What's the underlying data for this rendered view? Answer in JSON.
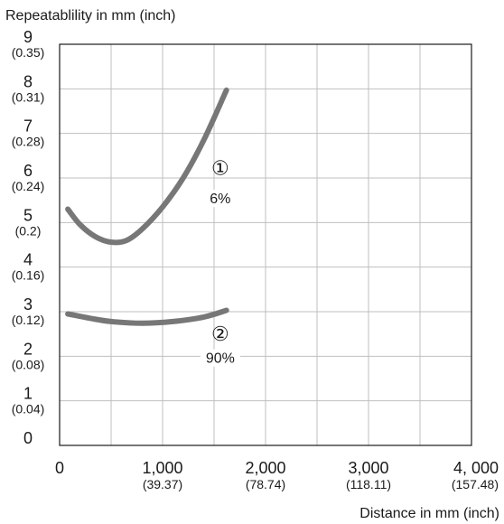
{
  "chart_data": {
    "type": "line",
    "ylabel": "Repeatablility in mm (inch)",
    "xlabel": "Distance in mm (inch)",
    "xlim": [
      0,
      4000
    ],
    "ylim": [
      0,
      9
    ],
    "grid": true,
    "x_ticks": [
      {
        "value": 0,
        "label": "0",
        "sub": ""
      },
      {
        "value": 1000,
        "label": "1,000",
        "sub": "(39.37)"
      },
      {
        "value": 2000,
        "label": "2,000",
        "sub": "(78.74)"
      },
      {
        "value": 3000,
        "label": "3,000",
        "sub": "(118.11)"
      },
      {
        "value": 4000,
        "label": "4, 000",
        "sub": "(157.48)"
      }
    ],
    "y_ticks": [
      {
        "value": 0,
        "label": "0",
        "sub": ""
      },
      {
        "value": 1,
        "label": "1",
        "sub": "(0.04)"
      },
      {
        "value": 2,
        "label": "2",
        "sub": "(0.08)"
      },
      {
        "value": 3,
        "label": "3",
        "sub": "(0.12)"
      },
      {
        "value": 4,
        "label": "4",
        "sub": "(0.16)"
      },
      {
        "value": 5,
        "label": "5",
        "sub": "(0.2)"
      },
      {
        "value": 6,
        "label": "6",
        "sub": "(0.24)"
      },
      {
        "value": 7,
        "label": "7",
        "sub": "(0.28)"
      },
      {
        "value": 8,
        "label": "8",
        "sub": "(0.31)"
      },
      {
        "value": 9,
        "label": "9",
        "sub": "(0.35)"
      }
    ],
    "series": [
      {
        "name": "6%",
        "marker": "①",
        "color": "#777777",
        "x": [
          80,
          200,
          350,
          500,
          650,
          800,
          1000,
          1200,
          1400,
          1620
        ],
        "y": [
          5.3,
          4.95,
          4.68,
          4.56,
          4.6,
          4.85,
          5.35,
          6.0,
          6.85,
          7.97
        ]
      },
      {
        "name": "90%",
        "marker": "②",
        "color": "#777777",
        "x": [
          80,
          300,
          500,
          800,
          1100,
          1400,
          1620
        ],
        "y": [
          2.95,
          2.85,
          2.78,
          2.74,
          2.78,
          2.88,
          3.03
        ]
      }
    ]
  }
}
